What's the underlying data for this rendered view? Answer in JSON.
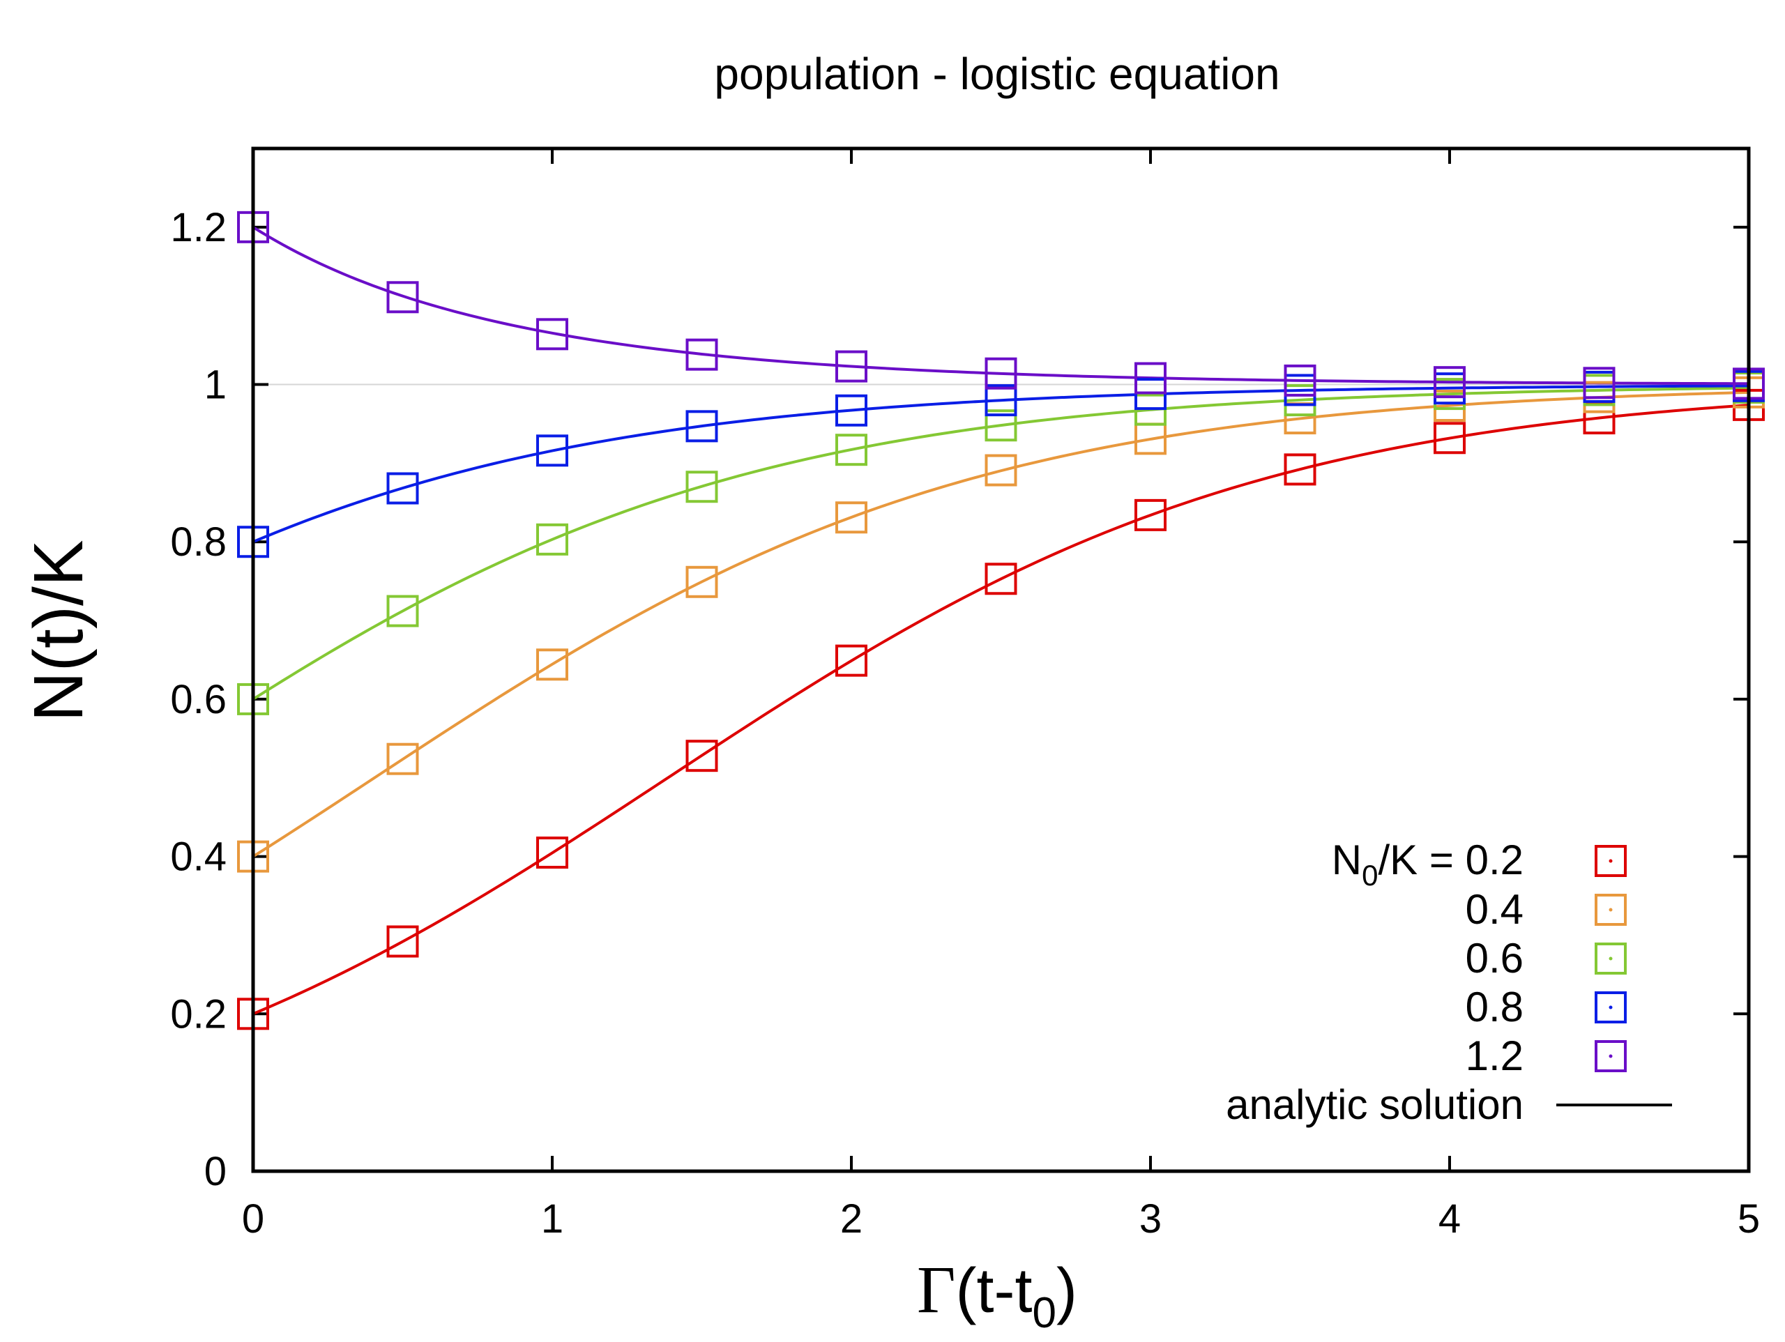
{
  "chart_data": {
    "type": "line",
    "title": "population - logistic equation",
    "xlabel": {
      "greek": "Γ",
      "main": "(t-t",
      "sub": "0",
      "close": ")"
    },
    "ylabel": "N(t)/K",
    "xlim": [
      0,
      5
    ],
    "ylim": [
      0,
      1.3
    ],
    "xticks": [
      0,
      1,
      2,
      3,
      4,
      5
    ],
    "xtick_labels": [
      "0",
      "1",
      "2",
      "3",
      "4",
      "5"
    ],
    "yticks": [
      0,
      0.2,
      0.4,
      0.6,
      0.8,
      1,
      1.2
    ],
    "ytick_labels": [
      "0",
      "0.2",
      "0.4",
      "0.6",
      "0.8",
      "1",
      "1.2"
    ],
    "reference_line": 1,
    "x": [
      0,
      0.5,
      1,
      1.5,
      2,
      2.5,
      3,
      3.5,
      4,
      4.5,
      5
    ],
    "legend_position": "bottom-right",
    "legend_header": {
      "main": "N",
      "sub": "0",
      "rest": "/K = "
    },
    "series": [
      {
        "name": "0.2",
        "color": "#dd0000",
        "n0": 0.2,
        "values": [
          0.2,
          0.292,
          0.405,
          0.528,
          0.649,
          0.753,
          0.834,
          0.892,
          0.932,
          0.957,
          0.974
        ]
      },
      {
        "name": "0.4",
        "color": "#e8983d",
        "n0": 0.4,
        "values": [
          0.4,
          0.524,
          0.644,
          0.749,
          0.831,
          0.891,
          0.931,
          0.957,
          0.973,
          0.984,
          0.99
        ]
      },
      {
        "name": "0.6",
        "color": "#84c834",
        "n0": 0.6,
        "values": [
          0.6,
          0.712,
          0.803,
          0.87,
          0.917,
          0.948,
          0.968,
          0.98,
          0.988,
          0.993,
          0.996
        ]
      },
      {
        "name": "0.8",
        "color": "#0a1ee6",
        "n0": 0.8,
        "values": [
          0.8,
          0.868,
          0.916,
          0.947,
          0.967,
          0.98,
          0.988,
          0.993,
          0.995,
          0.997,
          0.998
        ]
      },
      {
        "name": "1.2",
        "color": "#6a0ec8",
        "n0": 1.2,
        "values": [
          1.2,
          1.111,
          1.064,
          1.038,
          1.023,
          1.014,
          1.008,
          1.005,
          1.003,
          1.002,
          1.001
        ]
      }
    ],
    "analytic_label": "analytic solution"
  }
}
